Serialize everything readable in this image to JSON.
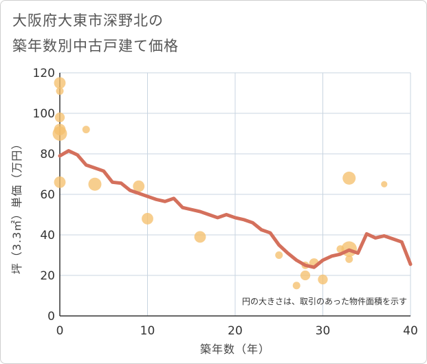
{
  "chart_data": {
    "type": "scatter",
    "title_line1": "大阪府大東市深野北の",
    "title_line2": "築年数別中古戸建て価格",
    "xlabel": "築年数（年）",
    "ylabel": "坪（3.3㎡）単価（万円）",
    "xlim": [
      0,
      40
    ],
    "ylim": [
      0,
      120
    ],
    "x_ticks": [
      "0",
      "10",
      "20",
      "30",
      "40"
    ],
    "y_ticks": [
      "0",
      "20",
      "40",
      "60",
      "80",
      "100",
      "120"
    ],
    "note": "円の大きさは、取引のあった物件面積を示す",
    "colors": {
      "bubble": "#f5c06e",
      "line": "#d4705c",
      "grid": "#c8d4e0"
    },
    "bubbles": [
      {
        "x": 0,
        "y": 115,
        "s": 3
      },
      {
        "x": 0,
        "y": 111,
        "s": 1
      },
      {
        "x": 0,
        "y": 98,
        "s": 2
      },
      {
        "x": 0,
        "y": 92,
        "s": 3
      },
      {
        "x": 0,
        "y": 90,
        "s": 5
      },
      {
        "x": 0,
        "y": 66,
        "s": 3
      },
      {
        "x": 3,
        "y": 92,
        "s": 1
      },
      {
        "x": 4,
        "y": 65,
        "s": 4
      },
      {
        "x": 9,
        "y": 64,
        "s": 3
      },
      {
        "x": 10,
        "y": 48,
        "s": 3
      },
      {
        "x": 16,
        "y": 39,
        "s": 3
      },
      {
        "x": 25,
        "y": 30,
        "s": 1
      },
      {
        "x": 27,
        "y": 15,
        "s": 1
      },
      {
        "x": 28,
        "y": 20,
        "s": 2
      },
      {
        "x": 28,
        "y": 25,
        "s": 1
      },
      {
        "x": 29,
        "y": 26,
        "s": 2
      },
      {
        "x": 30,
        "y": 18,
        "s": 2
      },
      {
        "x": 32,
        "y": 33,
        "s": 1
      },
      {
        "x": 33,
        "y": 68,
        "s": 4
      },
      {
        "x": 33,
        "y": 33,
        "s": 6
      },
      {
        "x": 33,
        "y": 28,
        "s": 1
      },
      {
        "x": 37,
        "y": 65,
        "s": 0.6
      }
    ],
    "trend": {
      "x": [
        0,
        1,
        2,
        3,
        4,
        5,
        6,
        7,
        8,
        9,
        10,
        11,
        12,
        13,
        14,
        15,
        16,
        17,
        18,
        19,
        20,
        21,
        22,
        23,
        24,
        25,
        26,
        27,
        28,
        29,
        30,
        31,
        32,
        33,
        34,
        35,
        36,
        37,
        38,
        39,
        40
      ],
      "y": [
        79,
        81.5,
        79.5,
        74.5,
        73,
        71.5,
        66,
        65.5,
        62,
        60.5,
        59,
        57.5,
        56.5,
        58,
        53.5,
        52.5,
        51.5,
        50,
        48.5,
        50,
        48.5,
        47.5,
        46,
        42.5,
        41,
        35,
        31,
        27.5,
        25,
        24,
        27.5,
        29.5,
        30.5,
        32.5,
        31,
        40.5,
        38.5,
        39.5,
        38,
        36.5,
        25.5
      ]
    }
  }
}
